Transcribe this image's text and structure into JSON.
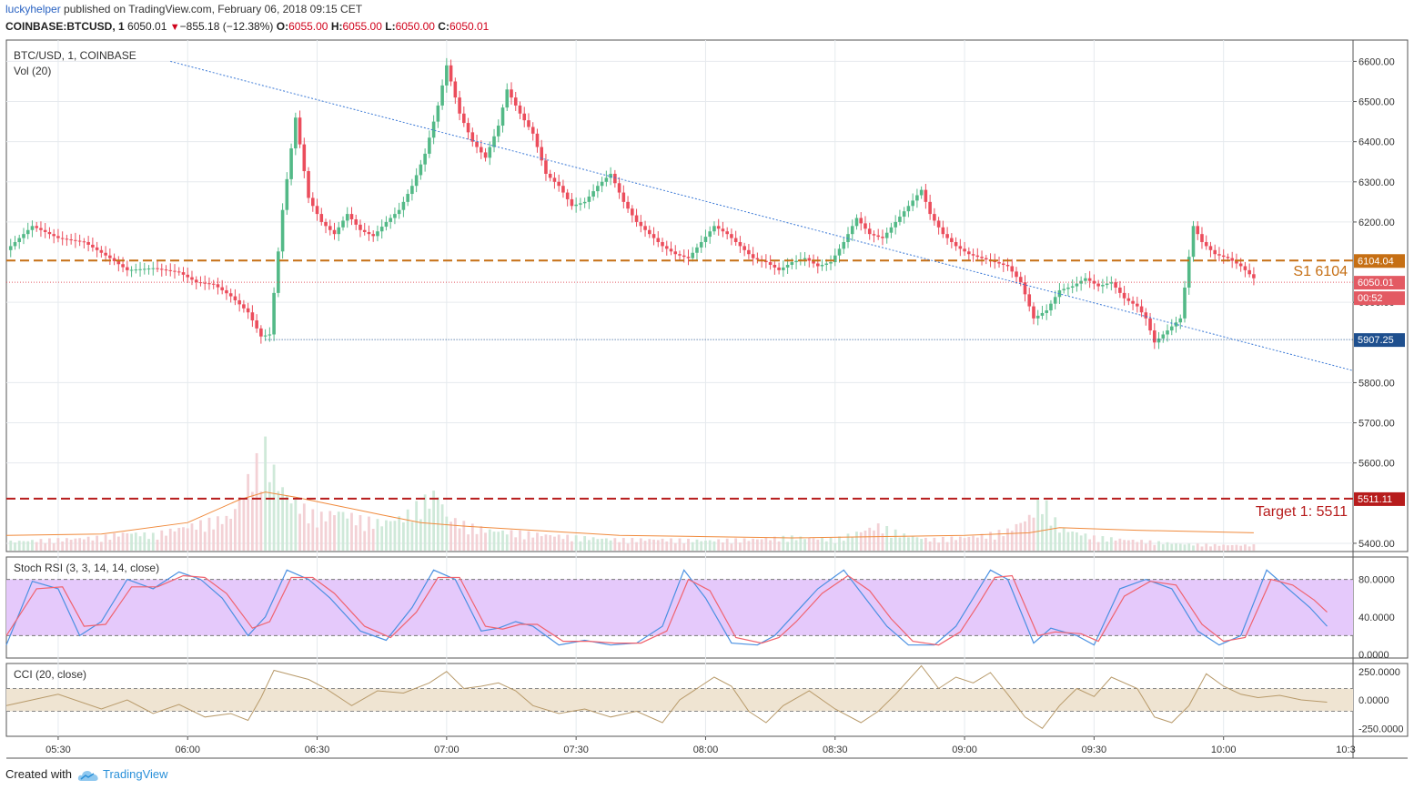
{
  "header": {
    "user": "luckyhelper",
    "published": "published on TradingView.com, February 06, 2018 09:15 CET",
    "symbol": "COINBASE:BTCUSD, 1",
    "last": "6050.01",
    "change_arrow": "▼",
    "change": "−855.18 (−12.38%)",
    "open_label": "O:",
    "open": "6055.00",
    "high_label": "H:",
    "high": "6055.00",
    "low_label": "L:",
    "low": "6050.00",
    "close_label": "C:",
    "close": "6050.01"
  },
  "footer": {
    "created_with": "Created with",
    "brand": "TradingView"
  },
  "colors": {
    "up": "#53b987",
    "down": "#eb4d5c",
    "support": "#c66f14",
    "target": "#b71c1c",
    "stoch_band": "#e5c9fb",
    "cci_band": "#efe4d2",
    "trendline": "#3b79d6",
    "low_line": "#1e4f8e"
  },
  "chart_data": {
    "type": "candlestick",
    "title": "BTC/USD, 1, COINBASE",
    "volume_label": "Vol (20)",
    "stoch_label": "Stoch RSI (3, 3, 14, 14, close)",
    "cci_label": "CCI (20, close)",
    "price_axis_ticks": [
      "6600.00",
      "6500.00",
      "6400.00",
      "6300.00",
      "6200.00",
      "6000.00",
      "5800.00",
      "5700.00",
      "5600.00",
      "5400.00"
    ],
    "price_tick_values": [
      6600,
      6500,
      6400,
      6300,
      6200,
      6000,
      5800,
      5700,
      5600,
      5400
    ],
    "price_ylim": [
      5384,
      6644
    ],
    "time_ticks": [
      "05:30",
      "06:00",
      "06:30",
      "07:00",
      "07:30",
      "08:00",
      "08:30",
      "09:00",
      "09:30",
      "10:00",
      "10:3"
    ],
    "time_tick_minutes": [
      330,
      360,
      390,
      420,
      450,
      480,
      510,
      540,
      570,
      600,
      630
    ],
    "time_range_minutes": [
      318,
      630
    ],
    "price_labels": {
      "support": "6104.04",
      "current": "6050.01",
      "countdown": "00:52",
      "low": "5907.25",
      "target": "5511.11"
    },
    "annotations": {
      "support": "S1 6104",
      "target": "Target 1: 5511"
    },
    "levels": {
      "support": 6104.04,
      "current": 6050.01,
      "low": 5907.25,
      "target": 5511.11
    },
    "trendline": {
      "from": [
        356,
        6600
      ],
      "to": [
        630,
        5830
      ]
    },
    "price_path": [
      [
        318,
        6130
      ],
      [
        324,
        6190
      ],
      [
        330,
        6160
      ],
      [
        336,
        6150
      ],
      [
        342,
        6110
      ],
      [
        346,
        6080
      ],
      [
        352,
        6085
      ],
      [
        358,
        6075
      ],
      [
        362,
        6050
      ],
      [
        366,
        6045
      ],
      [
        370,
        6015
      ],
      [
        374,
        5975
      ],
      [
        377,
        5915
      ],
      [
        379,
        5920
      ],
      [
        382,
        6230
      ],
      [
        385,
        6460
      ],
      [
        388,
        6260
      ],
      [
        391,
        6200
      ],
      [
        394,
        6170
      ],
      [
        397,
        6220
      ],
      [
        400,
        6180
      ],
      [
        403,
        6165
      ],
      [
        406,
        6200
      ],
      [
        409,
        6230
      ],
      [
        412,
        6290
      ],
      [
        415,
        6370
      ],
      [
        418,
        6490
      ],
      [
        420,
        6590
      ],
      [
        423,
        6470
      ],
      [
        426,
        6400
      ],
      [
        429,
        6360
      ],
      [
        432,
        6440
      ],
      [
        434,
        6530
      ],
      [
        437,
        6470
      ],
      [
        440,
        6420
      ],
      [
        443,
        6320
      ],
      [
        446,
        6290
      ],
      [
        449,
        6240
      ],
      [
        452,
        6250
      ],
      [
        455,
        6290
      ],
      [
        458,
        6320
      ],
      [
        461,
        6250
      ],
      [
        464,
        6200
      ],
      [
        467,
        6170
      ],
      [
        470,
        6140
      ],
      [
        473,
        6120
      ],
      [
        476,
        6110
      ],
      [
        479,
        6150
      ],
      [
        482,
        6190
      ],
      [
        485,
        6170
      ],
      [
        488,
        6140
      ],
      [
        491,
        6110
      ],
      [
        494,
        6100
      ],
      [
        497,
        6080
      ],
      [
        500,
        6100
      ],
      [
        503,
        6110
      ],
      [
        506,
        6090
      ],
      [
        509,
        6100
      ],
      [
        512,
        6150
      ],
      [
        515,
        6210
      ],
      [
        518,
        6170
      ],
      [
        521,
        6160
      ],
      [
        524,
        6200
      ],
      [
        527,
        6240
      ],
      [
        530,
        6280
      ],
      [
        532,
        6220
      ],
      [
        535,
        6170
      ],
      [
        538,
        6140
      ],
      [
        541,
        6120
      ],
      [
        544,
        6110
      ],
      [
        547,
        6100
      ],
      [
        550,
        6090
      ],
      [
        553,
        6050
      ],
      [
        556,
        5960
      ],
      [
        559,
        5980
      ],
      [
        562,
        6030
      ],
      [
        565,
        6040
      ],
      [
        568,
        6060
      ],
      [
        571,
        6040
      ],
      [
        574,
        6050
      ],
      [
        577,
        6010
      ],
      [
        580,
        5990
      ],
      [
        582,
        5960
      ],
      [
        584,
        5900
      ],
      [
        587,
        5930
      ],
      [
        590,
        5960
      ],
      [
        593,
        6190
      ],
      [
        595,
        6150
      ],
      [
        598,
        6120
      ],
      [
        601,
        6110
      ],
      [
        604,
        6090
      ],
      [
        607,
        6060
      ]
    ],
    "volume_ylim": [
      0,
      1
    ],
    "volume_path": [
      [
        318,
        0.08
      ],
      [
        330,
        0.1
      ],
      [
        340,
        0.12
      ],
      [
        346,
        0.16
      ],
      [
        352,
        0.14
      ],
      [
        358,
        0.2
      ],
      [
        364,
        0.25
      ],
      [
        370,
        0.3
      ],
      [
        375,
        0.7
      ],
      [
        378,
        0.9
      ],
      [
        381,
        0.6
      ],
      [
        384,
        0.45
      ],
      [
        390,
        0.3
      ],
      [
        395,
        0.35
      ],
      [
        400,
        0.28
      ],
      [
        405,
        0.25
      ],
      [
        410,
        0.3
      ],
      [
        414,
        0.42
      ],
      [
        418,
        0.52
      ],
      [
        420,
        0.3
      ],
      [
        425,
        0.22
      ],
      [
        430,
        0.18
      ],
      [
        440,
        0.15
      ],
      [
        450,
        0.12
      ],
      [
        460,
        0.1
      ],
      [
        470,
        0.1
      ],
      [
        480,
        0.09
      ],
      [
        490,
        0.1
      ],
      [
        500,
        0.12
      ],
      [
        510,
        0.1
      ],
      [
        520,
        0.22
      ],
      [
        526,
        0.14
      ],
      [
        532,
        0.1
      ],
      [
        540,
        0.12
      ],
      [
        545,
        0.14
      ],
      [
        550,
        0.18
      ],
      [
        555,
        0.3
      ],
      [
        558,
        0.46
      ],
      [
        562,
        0.2
      ],
      [
        570,
        0.12
      ],
      [
        580,
        0.09
      ],
      [
        590,
        0.06
      ],
      [
        600,
        0.05
      ],
      [
        607,
        0.05
      ]
    ],
    "volume_ma_path": [
      [
        318,
        0.12
      ],
      [
        340,
        0.13
      ],
      [
        360,
        0.22
      ],
      [
        372,
        0.4
      ],
      [
        378,
        0.46
      ],
      [
        385,
        0.42
      ],
      [
        395,
        0.35
      ],
      [
        405,
        0.28
      ],
      [
        414,
        0.22
      ],
      [
        425,
        0.19
      ],
      [
        440,
        0.16
      ],
      [
        460,
        0.12
      ],
      [
        480,
        0.11
      ],
      [
        500,
        0.1
      ],
      [
        520,
        0.11
      ],
      [
        540,
        0.12
      ],
      [
        555,
        0.14
      ],
      [
        562,
        0.18
      ],
      [
        580,
        0.16
      ],
      [
        607,
        0.14
      ]
    ],
    "stoch": {
      "ylim": [
        0,
        100
      ],
      "ticks": [
        "80.0000",
        "40.0000",
        "0.0000"
      ],
      "tick_values": [
        80,
        40,
        0
      ],
      "band": [
        20,
        80
      ],
      "k_path": [
        [
          318,
          10
        ],
        [
          324,
          78
        ],
        [
          330,
          70
        ],
        [
          335,
          20
        ],
        [
          340,
          35
        ],
        [
          346,
          80
        ],
        [
          352,
          70
        ],
        [
          358,
          88
        ],
        [
          363,
          80
        ],
        [
          368,
          60
        ],
        [
          374,
          20
        ],
        [
          378,
          40
        ],
        [
          383,
          90
        ],
        [
          388,
          80
        ],
        [
          393,
          60
        ],
        [
          400,
          25
        ],
        [
          406,
          15
        ],
        [
          412,
          50
        ],
        [
          417,
          90
        ],
        [
          422,
          80
        ],
        [
          428,
          25
        ],
        [
          432,
          28
        ],
        [
          436,
          35
        ],
        [
          440,
          30
        ],
        [
          446,
          10
        ],
        [
          452,
          15
        ],
        [
          458,
          10
        ],
        [
          464,
          12
        ],
        [
          470,
          30
        ],
        [
          475,
          90
        ],
        [
          480,
          60
        ],
        [
          486,
          12
        ],
        [
          492,
          10
        ],
        [
          496,
          20
        ],
        [
          500,
          40
        ],
        [
          506,
          70
        ],
        [
          512,
          90
        ],
        [
          517,
          60
        ],
        [
          522,
          30
        ],
        [
          527,
          10
        ],
        [
          533,
          10
        ],
        [
          538,
          30
        ],
        [
          542,
          60
        ],
        [
          546,
          90
        ],
        [
          550,
          80
        ],
        [
          556,
          12
        ],
        [
          560,
          28
        ],
        [
          566,
          20
        ],
        [
          570,
          10
        ],
        [
          576,
          70
        ],
        [
          582,
          80
        ],
        [
          588,
          70
        ],
        [
          594,
          25
        ],
        [
          599,
          10
        ],
        [
          604,
          20
        ],
        [
          610,
          90
        ],
        [
          615,
          70
        ],
        [
          620,
          50
        ],
        [
          624,
          30
        ]
      ],
      "d_path": [
        [
          318,
          20
        ],
        [
          325,
          70
        ],
        [
          331,
          72
        ],
        [
          336,
          30
        ],
        [
          341,
          32
        ],
        [
          347,
          72
        ],
        [
          353,
          72
        ],
        [
          359,
          84
        ],
        [
          364,
          82
        ],
        [
          369,
          65
        ],
        [
          375,
          28
        ],
        [
          379,
          35
        ],
        [
          384,
          82
        ],
        [
          389,
          82
        ],
        [
          394,
          65
        ],
        [
          401,
          30
        ],
        [
          407,
          18
        ],
        [
          413,
          45
        ],
        [
          418,
          82
        ],
        [
          423,
          82
        ],
        [
          429,
          30
        ],
        [
          433,
          27
        ],
        [
          437,
          32
        ],
        [
          441,
          32
        ],
        [
          447,
          14
        ],
        [
          453,
          14
        ],
        [
          459,
          12
        ],
        [
          465,
          12
        ],
        [
          471,
          25
        ],
        [
          476,
          80
        ],
        [
          481,
          68
        ],
        [
          487,
          18
        ],
        [
          493,
          12
        ],
        [
          497,
          18
        ],
        [
          501,
          35
        ],
        [
          507,
          65
        ],
        [
          513,
          84
        ],
        [
          518,
          68
        ],
        [
          523,
          38
        ],
        [
          528,
          14
        ],
        [
          534,
          10
        ],
        [
          539,
          24
        ],
        [
          543,
          52
        ],
        [
          547,
          82
        ],
        [
          551,
          84
        ],
        [
          557,
          20
        ],
        [
          561,
          24
        ],
        [
          567,
          22
        ],
        [
          571,
          14
        ],
        [
          577,
          62
        ],
        [
          583,
          78
        ],
        [
          589,
          74
        ],
        [
          595,
          32
        ],
        [
          600,
          14
        ],
        [
          605,
          18
        ],
        [
          611,
          80
        ],
        [
          616,
          74
        ],
        [
          621,
          58
        ],
        [
          624,
          45
        ]
      ]
    },
    "cci": {
      "ylim": [
        -320,
        320
      ],
      "ticks": [
        "250.0000",
        "0.0000",
        "-250.0000"
      ],
      "tick_values": [
        250,
        0,
        -250
      ],
      "band": [
        -100,
        100
      ],
      "path": [
        [
          318,
          -50
        ],
        [
          330,
          50
        ],
        [
          340,
          -80
        ],
        [
          346,
          0
        ],
        [
          352,
          -120
        ],
        [
          358,
          -40
        ],
        [
          364,
          -150
        ],
        [
          370,
          -120
        ],
        [
          374,
          -180
        ],
        [
          377,
          20
        ],
        [
          380,
          260
        ],
        [
          384,
          220
        ],
        [
          388,
          180
        ],
        [
          392,
          100
        ],
        [
          398,
          -50
        ],
        [
          404,
          80
        ],
        [
          410,
          60
        ],
        [
          416,
          150
        ],
        [
          420,
          250
        ],
        [
          424,
          100
        ],
        [
          428,
          120
        ],
        [
          432,
          150
        ],
        [
          436,
          80
        ],
        [
          440,
          -50
        ],
        [
          446,
          -120
        ],
        [
          452,
          -80
        ],
        [
          458,
          -150
        ],
        [
          464,
          -100
        ],
        [
          470,
          -200
        ],
        [
          474,
          0
        ],
        [
          478,
          100
        ],
        [
          482,
          200
        ],
        [
          486,
          120
        ],
        [
          490,
          -100
        ],
        [
          494,
          -200
        ],
        [
          498,
          -50
        ],
        [
          504,
          80
        ],
        [
          510,
          -80
        ],
        [
          516,
          -200
        ],
        [
          520,
          -100
        ],
        [
          524,
          50
        ],
        [
          530,
          300
        ],
        [
          534,
          100
        ],
        [
          538,
          200
        ],
        [
          542,
          150
        ],
        [
          546,
          240
        ],
        [
          550,
          50
        ],
        [
          554,
          -150
        ],
        [
          558,
          -250
        ],
        [
          562,
          -50
        ],
        [
          566,
          100
        ],
        [
          570,
          30
        ],
        [
          574,
          200
        ],
        [
          580,
          100
        ],
        [
          584,
          -150
        ],
        [
          588,
          -200
        ],
        [
          592,
          -50
        ],
        [
          596,
          230
        ],
        [
          600,
          120
        ],
        [
          604,
          50
        ],
        [
          608,
          20
        ],
        [
          613,
          40
        ],
        [
          618,
          0
        ],
        [
          624,
          -20
        ]
      ]
    }
  }
}
